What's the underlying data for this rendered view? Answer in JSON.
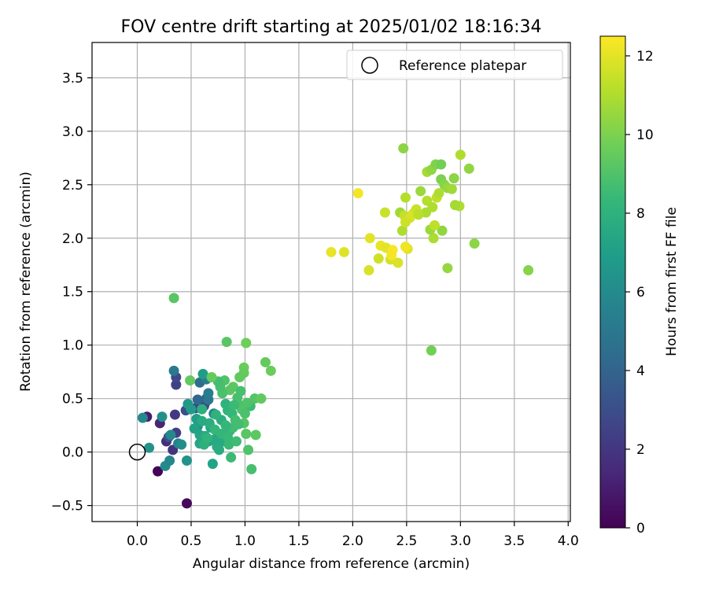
{
  "chart_data": {
    "type": "scatter",
    "title": "FOV centre drift starting at 2025/01/02 18:16:34",
    "xlabel": "Angular distance from reference (arcmin)",
    "ylabel": "Rotation from reference (arcmin)",
    "xlim": [
      -0.42,
      4.02
    ],
    "ylim": [
      -0.65,
      3.83
    ],
    "x_ticks": [
      "0.0",
      "0.5",
      "1.0",
      "1.5",
      "2.0",
      "2.5",
      "3.0",
      "3.5",
      "4.0"
    ],
    "y_ticks": [
      "−0.5",
      "0.0",
      "0.5",
      "1.0",
      "1.5",
      "2.0",
      "2.5",
      "3.0",
      "3.5"
    ],
    "grid": true,
    "legend": {
      "placement": "top-right",
      "entries": [
        "Reference platepar"
      ]
    },
    "reference_point": {
      "x": 0.0,
      "y": 0.0
    },
    "colorbar": {
      "label": "Hours from first FF file",
      "range": [
        0,
        12.5
      ],
      "ticks": [
        "0",
        "2",
        "4",
        "6",
        "8",
        "10",
        "12"
      ],
      "colormap": [
        "#440154",
        "#482878",
        "#3e4989",
        "#31688e",
        "#26828e",
        "#1f9e89",
        "#35b779",
        "#6ece58",
        "#b5de2b",
        "#fde725"
      ]
    },
    "points": [
      [
        0.19,
        -0.18,
        0.1
      ],
      [
        0.46,
        -0.48,
        0.3
      ],
      [
        0.09,
        0.33,
        1.0
      ],
      [
        0.21,
        0.27,
        1.3
      ],
      [
        0.27,
        0.1,
        1.6
      ],
      [
        0.33,
        0.02,
        1.9
      ],
      [
        0.36,
        0.63,
        2.5
      ],
      [
        0.36,
        0.7,
        2.8
      ],
      [
        0.36,
        0.18,
        2.3
      ],
      [
        0.29,
        0.14,
        3.2
      ],
      [
        0.35,
        0.35,
        2.1
      ],
      [
        0.45,
        0.39,
        3.0
      ],
      [
        0.54,
        0.41,
        2.6
      ],
      [
        0.62,
        0.43,
        3.3
      ],
      [
        0.63,
        0.46,
        2.7
      ],
      [
        0.64,
        0.5,
        3.9
      ],
      [
        0.56,
        0.49,
        4.2
      ],
      [
        0.58,
        0.65,
        4.4
      ],
      [
        0.66,
        0.49,
        5.0
      ],
      [
        0.66,
        0.55,
        5.2
      ],
      [
        0.64,
        0.68,
        5.4
      ],
      [
        0.71,
        0.36,
        5.6
      ],
      [
        0.34,
        0.76,
        5.1
      ],
      [
        0.05,
        0.32,
        5.9
      ],
      [
        0.23,
        0.33,
        6.2
      ],
      [
        0.11,
        0.04,
        6.4
      ],
      [
        0.26,
        -0.13,
        6.0
      ],
      [
        0.3,
        -0.08,
        5.8
      ],
      [
        0.31,
        0.16,
        5.9
      ],
      [
        0.38,
        0.08,
        5.5
      ],
      [
        0.41,
        0.07,
        6.1
      ],
      [
        0.46,
        -0.08,
        6.4
      ],
      [
        0.47,
        0.45,
        6.6
      ],
      [
        0.5,
        0.4,
        6.8
      ],
      [
        0.56,
        0.24,
        6.3
      ],
      [
        0.55,
        0.31,
        7.0
      ],
      [
        0.58,
        0.16,
        7.3
      ],
      [
        0.61,
        0.73,
        6.9
      ],
      [
        0.66,
        0.1,
        7.1
      ],
      [
        0.7,
        -0.11,
        7.2
      ],
      [
        0.68,
        0.23,
        7.4
      ],
      [
        0.72,
        0.12,
        7.5
      ],
      [
        0.74,
        0.05,
        7.6
      ],
      [
        0.76,
        0.02,
        7.7
      ],
      [
        0.78,
        0.3,
        7.8
      ],
      [
        0.8,
        0.1,
        7.5
      ],
      [
        0.82,
        0.45,
        8.0
      ],
      [
        0.84,
        0.39,
        8.1
      ],
      [
        0.86,
        0.2,
        8.2
      ],
      [
        0.88,
        0.36,
        8.3
      ],
      [
        0.85,
        0.07,
        8.4
      ],
      [
        0.87,
        -0.05,
        8.5
      ],
      [
        0.89,
        0.23,
        8.6
      ],
      [
        0.91,
        0.3,
        8.7
      ],
      [
        0.93,
        0.51,
        8.8
      ],
      [
        0.95,
        0.44,
        8.9
      ],
      [
        0.97,
        0.4,
        9.0
      ],
      [
        0.99,
        0.27,
        9.1
      ],
      [
        1.01,
        0.17,
        9.2
      ],
      [
        1.03,
        0.02,
        9.0
      ],
      [
        1.05,
        0.43,
        8.5
      ],
      [
        1.06,
        -0.16,
        8.8
      ],
      [
        1.09,
        0.5,
        9.1
      ],
      [
        1.1,
        0.16,
        9.3
      ],
      [
        1.15,
        0.5,
        9.4
      ],
      [
        1.19,
        0.84,
        9.5
      ],
      [
        1.24,
        0.76,
        9.6
      ],
      [
        0.83,
        1.03,
        9.2
      ],
      [
        1.01,
        1.02,
        9.7
      ],
      [
        0.99,
        0.79,
        9.6
      ],
      [
        0.99,
        0.74,
        9.5
      ],
      [
        0.95,
        0.7,
        9.4
      ],
      [
        0.89,
        0.61,
        9.3
      ],
      [
        0.86,
        0.58,
        9.2
      ],
      [
        0.81,
        0.67,
        9.0
      ],
      [
        0.79,
        0.55,
        8.9
      ],
      [
        0.77,
        0.61,
        8.8
      ],
      [
        0.75,
        0.66,
        8.7
      ],
      [
        0.69,
        0.7,
        9.5
      ],
      [
        0.49,
        0.67,
        9.4
      ],
      [
        0.34,
        1.44,
        9.2
      ],
      [
        0.6,
        0.4,
        7.9
      ],
      [
        0.63,
        0.15,
        7.7
      ],
      [
        0.67,
        0.27,
        7.8
      ],
      [
        0.73,
        0.35,
        8.0
      ],
      [
        0.78,
        0.17,
        8.2
      ],
      [
        0.82,
        0.25,
        8.3
      ],
      [
        0.84,
        0.14,
        8.4
      ],
      [
        0.9,
        0.44,
        8.5
      ],
      [
        0.92,
        0.1,
        8.6
      ],
      [
        0.94,
        0.26,
        8.7
      ],
      [
        0.96,
        0.57,
        8.8
      ],
      [
        1.0,
        0.36,
        8.9
      ],
      [
        1.02,
        0.46,
        9.0
      ],
      [
        0.53,
        0.22,
        7.2
      ],
      [
        0.58,
        0.08,
        7.4
      ],
      [
        0.6,
        0.29,
        7.6
      ],
      [
        0.62,
        0.07,
        7.9
      ],
      [
        0.65,
        0.13,
        8.1
      ],
      [
        0.72,
        0.21,
        8.3
      ],
      [
        2.47,
        2.84,
        10.3
      ],
      [
        2.63,
        2.44,
        10.6
      ],
      [
        2.69,
        2.62,
        10.8
      ],
      [
        2.73,
        2.64,
        10.4
      ],
      [
        2.77,
        2.69,
        10.1
      ],
      [
        2.82,
        2.69,
        9.8
      ],
      [
        2.82,
        2.55,
        10.0
      ],
      [
        2.85,
        2.5,
        10.2
      ],
      [
        2.88,
        2.47,
        10.5
      ],
      [
        2.92,
        2.46,
        10.7
      ],
      [
        2.94,
        2.56,
        10.3
      ],
      [
        3.0,
        2.78,
        11.0
      ],
      [
        3.08,
        2.65,
        10.4
      ],
      [
        2.99,
        2.3,
        11.0
      ],
      [
        2.95,
        2.31,
        10.8
      ],
      [
        2.83,
        2.07,
        10.4
      ],
      [
        2.88,
        1.72,
        10.5
      ],
      [
        2.75,
        2.0,
        10.9
      ],
      [
        2.72,
        2.08,
        10.6
      ],
      [
        2.76,
        2.12,
        11.3
      ],
      [
        2.68,
        2.24,
        10.9
      ],
      [
        2.69,
        2.35,
        11.1
      ],
      [
        2.74,
        2.29,
        11.0
      ],
      [
        2.78,
        2.38,
        11.3
      ],
      [
        2.8,
        2.42,
        11.0
      ],
      [
        3.13,
        1.95,
        10.3
      ],
      [
        3.63,
        1.7,
        10.2
      ],
      [
        2.73,
        0.95,
        9.8
      ],
      [
        2.49,
        2.38,
        11.1
      ],
      [
        2.44,
        2.24,
        10.7
      ],
      [
        2.48,
        2.21,
        11.4
      ],
      [
        2.53,
        2.19,
        11.7
      ],
      [
        2.56,
        2.23,
        11.8
      ],
      [
        2.59,
        2.27,
        11.5
      ],
      [
        2.46,
        2.07,
        11.0
      ],
      [
        2.49,
        2.15,
        11.6
      ],
      [
        2.51,
        1.9,
        11.9
      ],
      [
        2.3,
        2.24,
        11.5
      ],
      [
        2.26,
        1.93,
        12.1
      ],
      [
        2.31,
        1.91,
        12.0
      ],
      [
        2.24,
        1.81,
        11.6
      ],
      [
        2.35,
        1.8,
        11.7
      ],
      [
        2.37,
        1.89,
        12.4
      ],
      [
        2.42,
        1.77,
        11.8
      ],
      [
        2.49,
        1.92,
        12.2
      ],
      [
        2.16,
        2.0,
        12.0
      ],
      [
        2.05,
        2.42,
        12.3
      ],
      [
        1.92,
        1.87,
        11.9
      ],
      [
        1.8,
        1.87,
        12.1
      ],
      [
        2.15,
        1.7,
        11.8
      ],
      [
        2.36,
        1.84,
        12.3
      ],
      [
        2.61,
        2.22,
        11.2
      ]
    ]
  }
}
